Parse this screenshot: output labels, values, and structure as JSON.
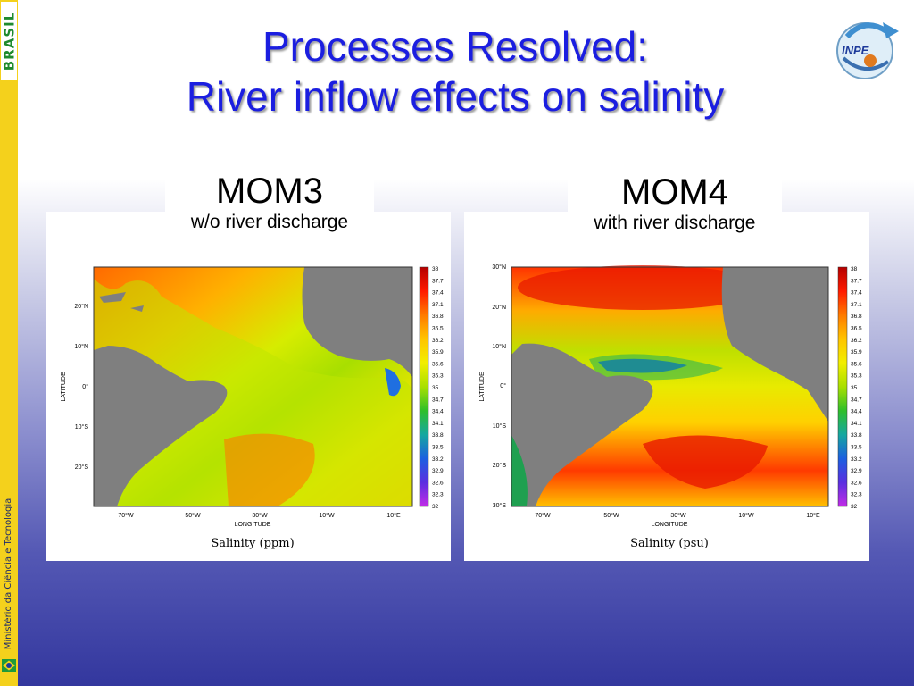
{
  "title": {
    "line1": "Processes Resolved:",
    "line2": "River inflow effects on salinity"
  },
  "sidebar": {
    "logo_text": "BRASIL",
    "ministry_text": "Ministério da Ciência e Tecnologia"
  },
  "logo": {
    "text": "INPE"
  },
  "colors": {
    "title": "#1b1ee0",
    "sidebar": "#f4d11c",
    "land": "#7f7f7f"
  },
  "colorbar_labels": [
    "38",
    "37.7",
    "37.4",
    "37.1",
    "36.8",
    "36.5",
    "36.2",
    "35.9",
    "35.6",
    "35.3",
    "35",
    "34.7",
    "34.4",
    "34.1",
    "33.8",
    "33.5",
    "33.2",
    "32.9",
    "32.6",
    "32.3",
    "32"
  ],
  "panels": [
    {
      "model": "MOM3",
      "subtitle": "w/o river discharge",
      "caption": "Salinity (ppm)",
      "xlabel": "LONGITUDE",
      "ylabel": "LATITUDE",
      "xticks": [
        "70°W",
        "50°W",
        "30°W",
        "10°W",
        "10°E"
      ],
      "yticks": [
        "20°N",
        "10°N",
        "0°",
        "10°S",
        "20°S"
      ]
    },
    {
      "model": "MOM4",
      "subtitle": "with river discharge",
      "caption": "Salinity (psu)",
      "xlabel": "LONGITUDE",
      "ylabel": "LATITUDE",
      "xticks": [
        "70°W",
        "50°W",
        "30°W",
        "10°W",
        "10°E"
      ],
      "yticks": [
        "30°N",
        "20°N",
        "10°N",
        "0°",
        "10°S",
        "20°S",
        "30°S"
      ]
    }
  ]
}
